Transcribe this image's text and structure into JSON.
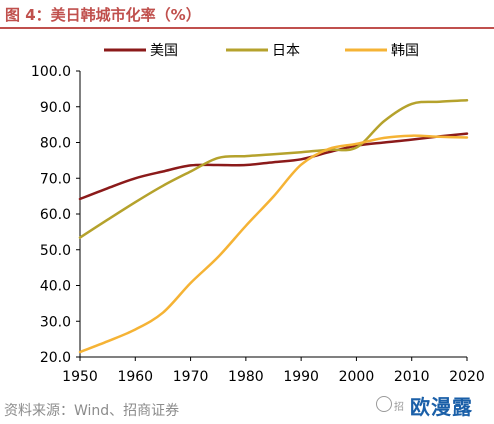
{
  "figure_title": "图 4：美日韩城市化率（%）",
  "source_note": "资料来源：Wind、招商证券",
  "watermark": {
    "small_text": "招",
    "brand_text": "欧漫露"
  },
  "colors": {
    "accent": "#c0504d",
    "us": "#8b1a1a",
    "japan": "#b5a22c",
    "korea": "#f5b335",
    "axis": "#000000"
  },
  "chart_data": {
    "type": "line",
    "title": "",
    "xlabel": "",
    "ylabel": "",
    "xlim": [
      1950,
      2020
    ],
    "ylim": [
      20,
      100
    ],
    "x_ticks": [
      "1950",
      "1960",
      "1970",
      "1980",
      "1990",
      "2000",
      "2010",
      "2020"
    ],
    "y_ticks": [
      "20.0",
      "30.0",
      "40.0",
      "50.0",
      "60.0",
      "70.0",
      "80.0",
      "90.0",
      "100.0"
    ],
    "grid": false,
    "legend_position": "top",
    "x": [
      1950,
      1955,
      1960,
      1965,
      1970,
      1975,
      1980,
      1985,
      1990,
      1995,
      2000,
      2005,
      2010,
      2015,
      2020
    ],
    "series": [
      {
        "name": "美国",
        "color": "#8b1a1a",
        "values": [
          64.2,
          67.2,
          70.0,
          71.9,
          73.6,
          73.7,
          73.7,
          74.5,
          75.3,
          77.3,
          79.1,
          80.0,
          80.8,
          81.7,
          82.5
        ]
      },
      {
        "name": "日本",
        "color": "#b5a22c",
        "values": [
          53.4,
          58.4,
          63.3,
          67.9,
          71.9,
          75.7,
          76.2,
          76.7,
          77.3,
          78.0,
          78.6,
          86.0,
          90.8,
          91.4,
          91.8
        ]
      },
      {
        "name": "韩国",
        "color": "#f5b335",
        "values": [
          21.4,
          24.4,
          27.7,
          32.4,
          40.7,
          48.0,
          56.7,
          64.9,
          73.8,
          78.2,
          79.6,
          81.3,
          81.9,
          81.6,
          81.4
        ]
      }
    ]
  }
}
